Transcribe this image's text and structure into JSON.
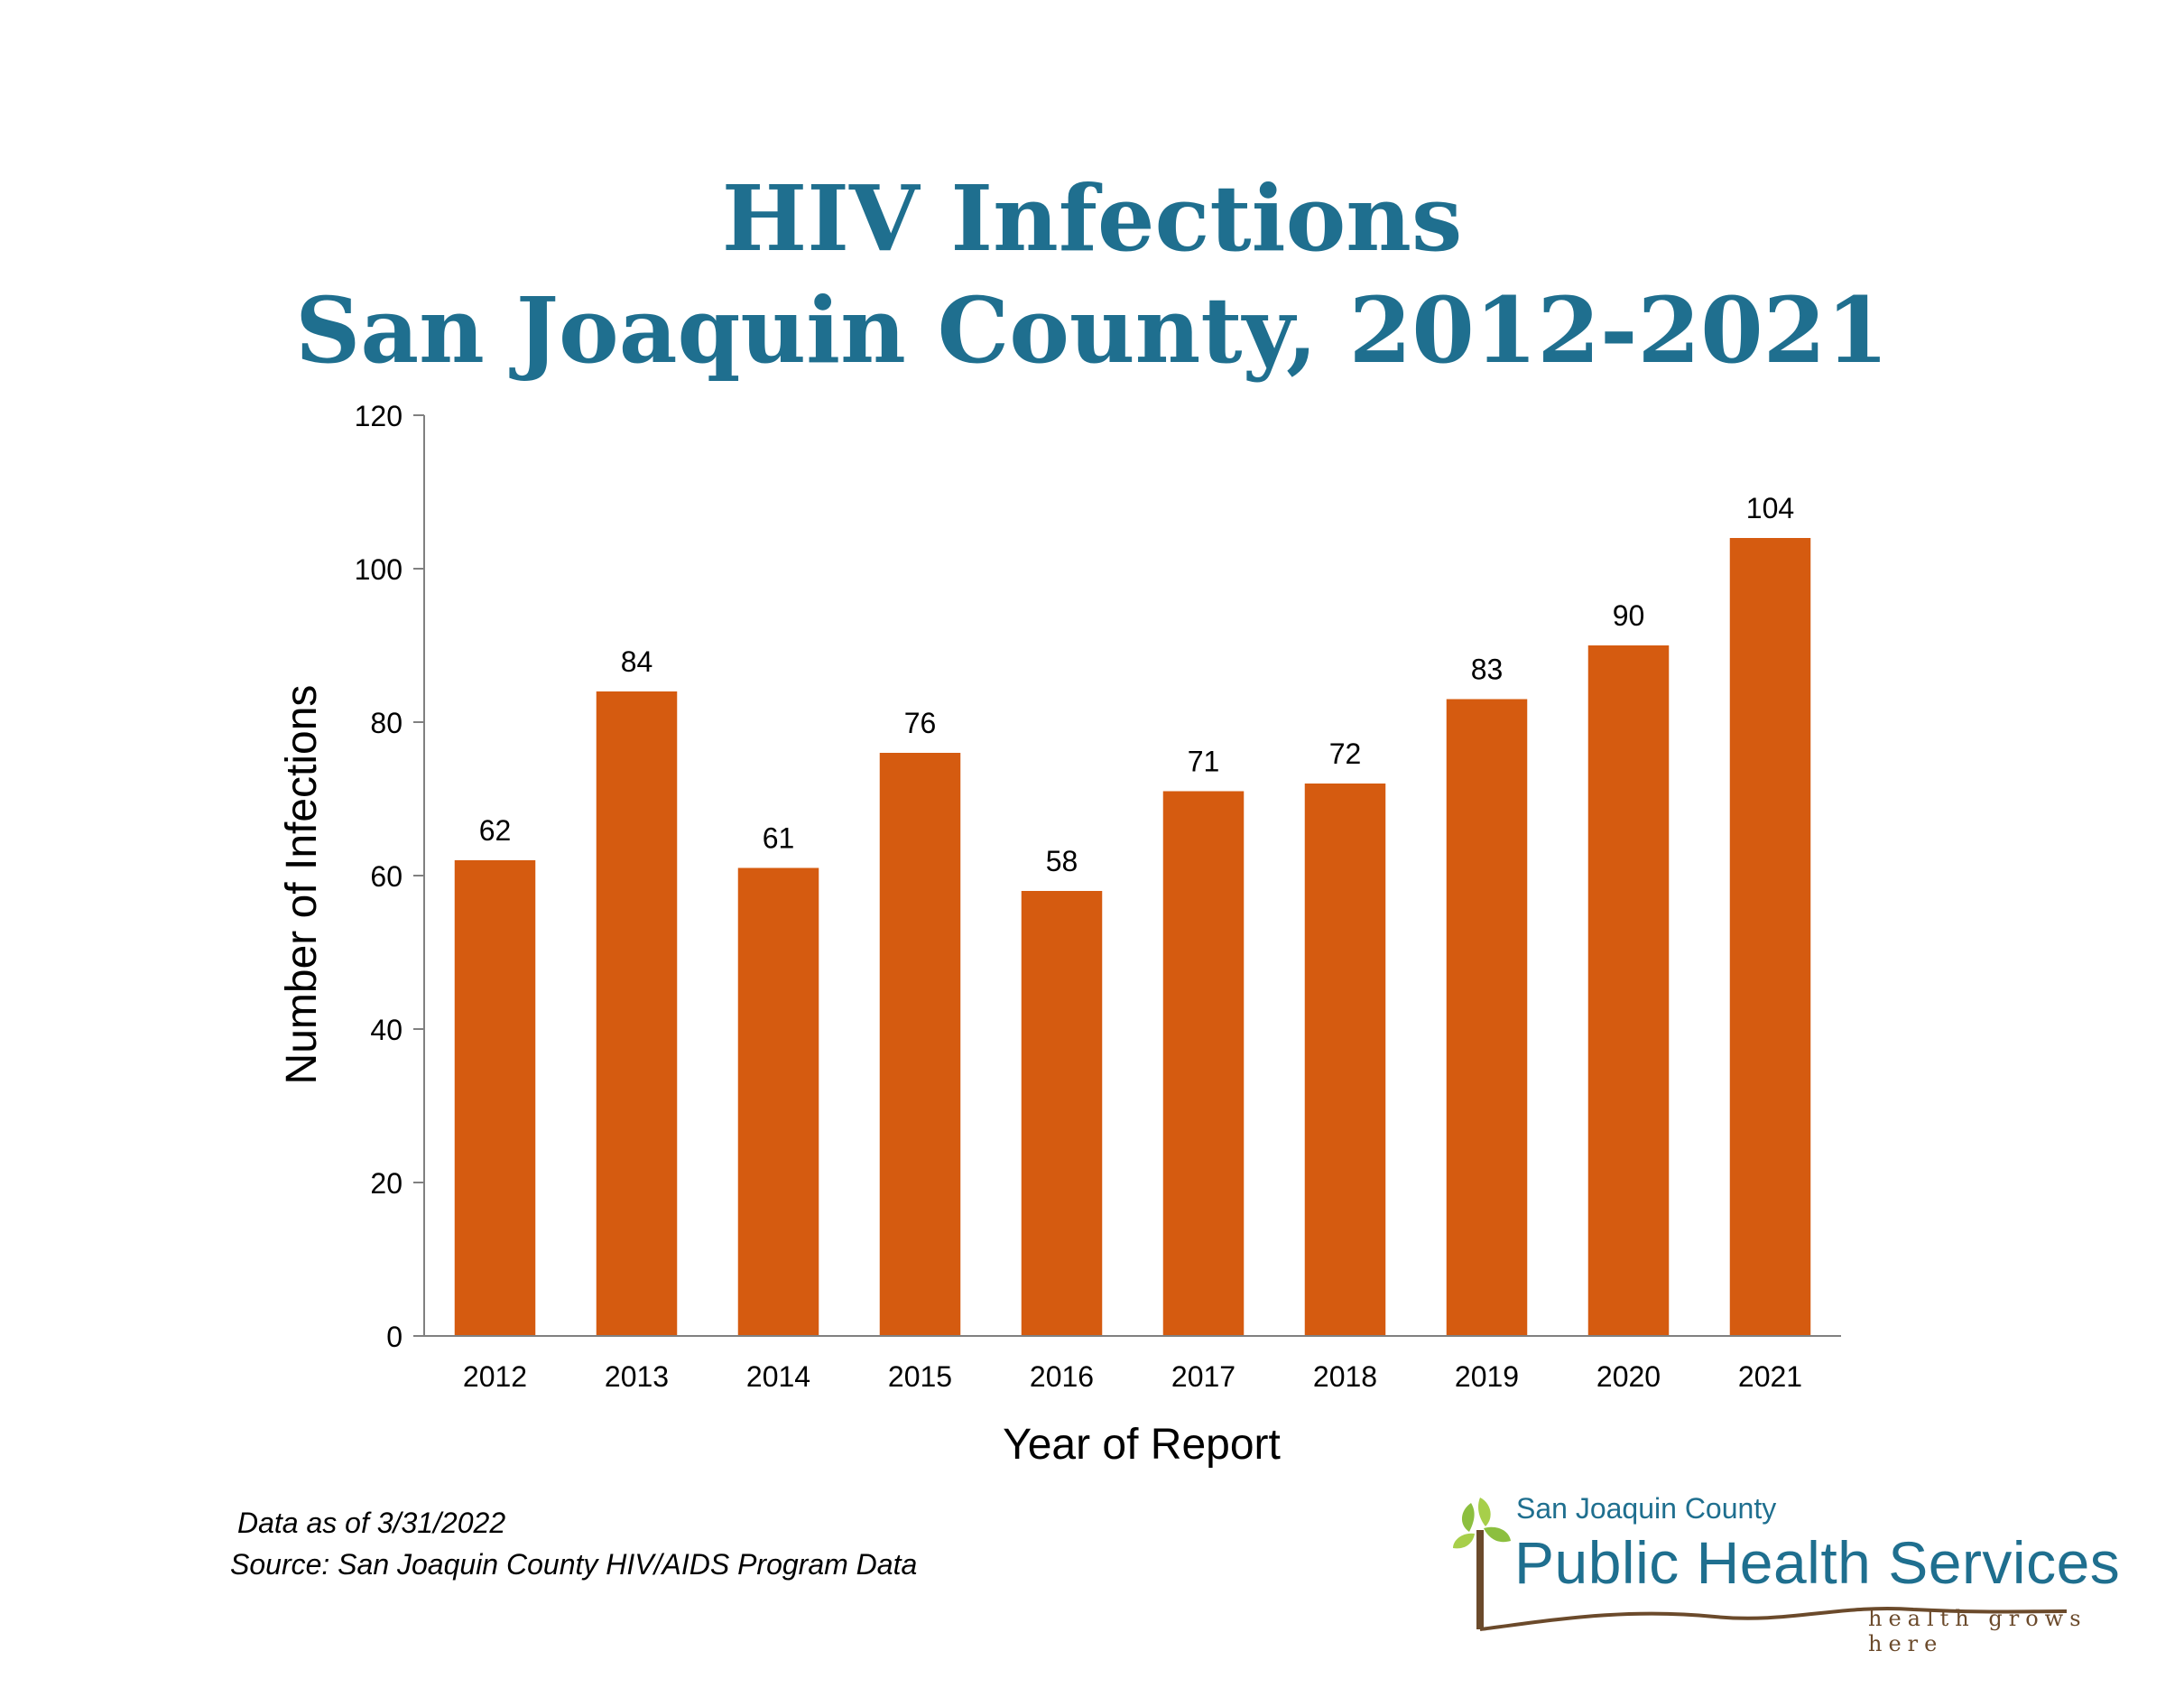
{
  "title_line1": "HIV Infections",
  "title_line2": "San Joaquin County, 2012-2021",
  "footnote": {
    "data_as_of": "Data as of 3/31/2022",
    "source": "Source:  San Joaquin County HIV/AIDS Program Data"
  },
  "logo": {
    "org": "San Joaquin County",
    "service": "Public Health Services",
    "tagline": "health grows here"
  },
  "colors": {
    "bar": "#d55b10",
    "title": "#1f6f8f",
    "axis": "#808080"
  },
  "chart_data": {
    "type": "bar",
    "title": "HIV Infections San Joaquin County, 2012-2021",
    "xlabel": "Year of Report",
    "ylabel": "Number of Infections",
    "categories": [
      "2012",
      "2013",
      "2014",
      "2015",
      "2016",
      "2017",
      "2018",
      "2019",
      "2020",
      "2021"
    ],
    "values": [
      62,
      84,
      61,
      76,
      58,
      71,
      72,
      83,
      90,
      104
    ],
    "ylim": [
      0,
      120
    ],
    "yticks": [
      0,
      20,
      40,
      60,
      80,
      100,
      120
    ],
    "data_labels": true,
    "grid": false,
    "legend": "none"
  }
}
